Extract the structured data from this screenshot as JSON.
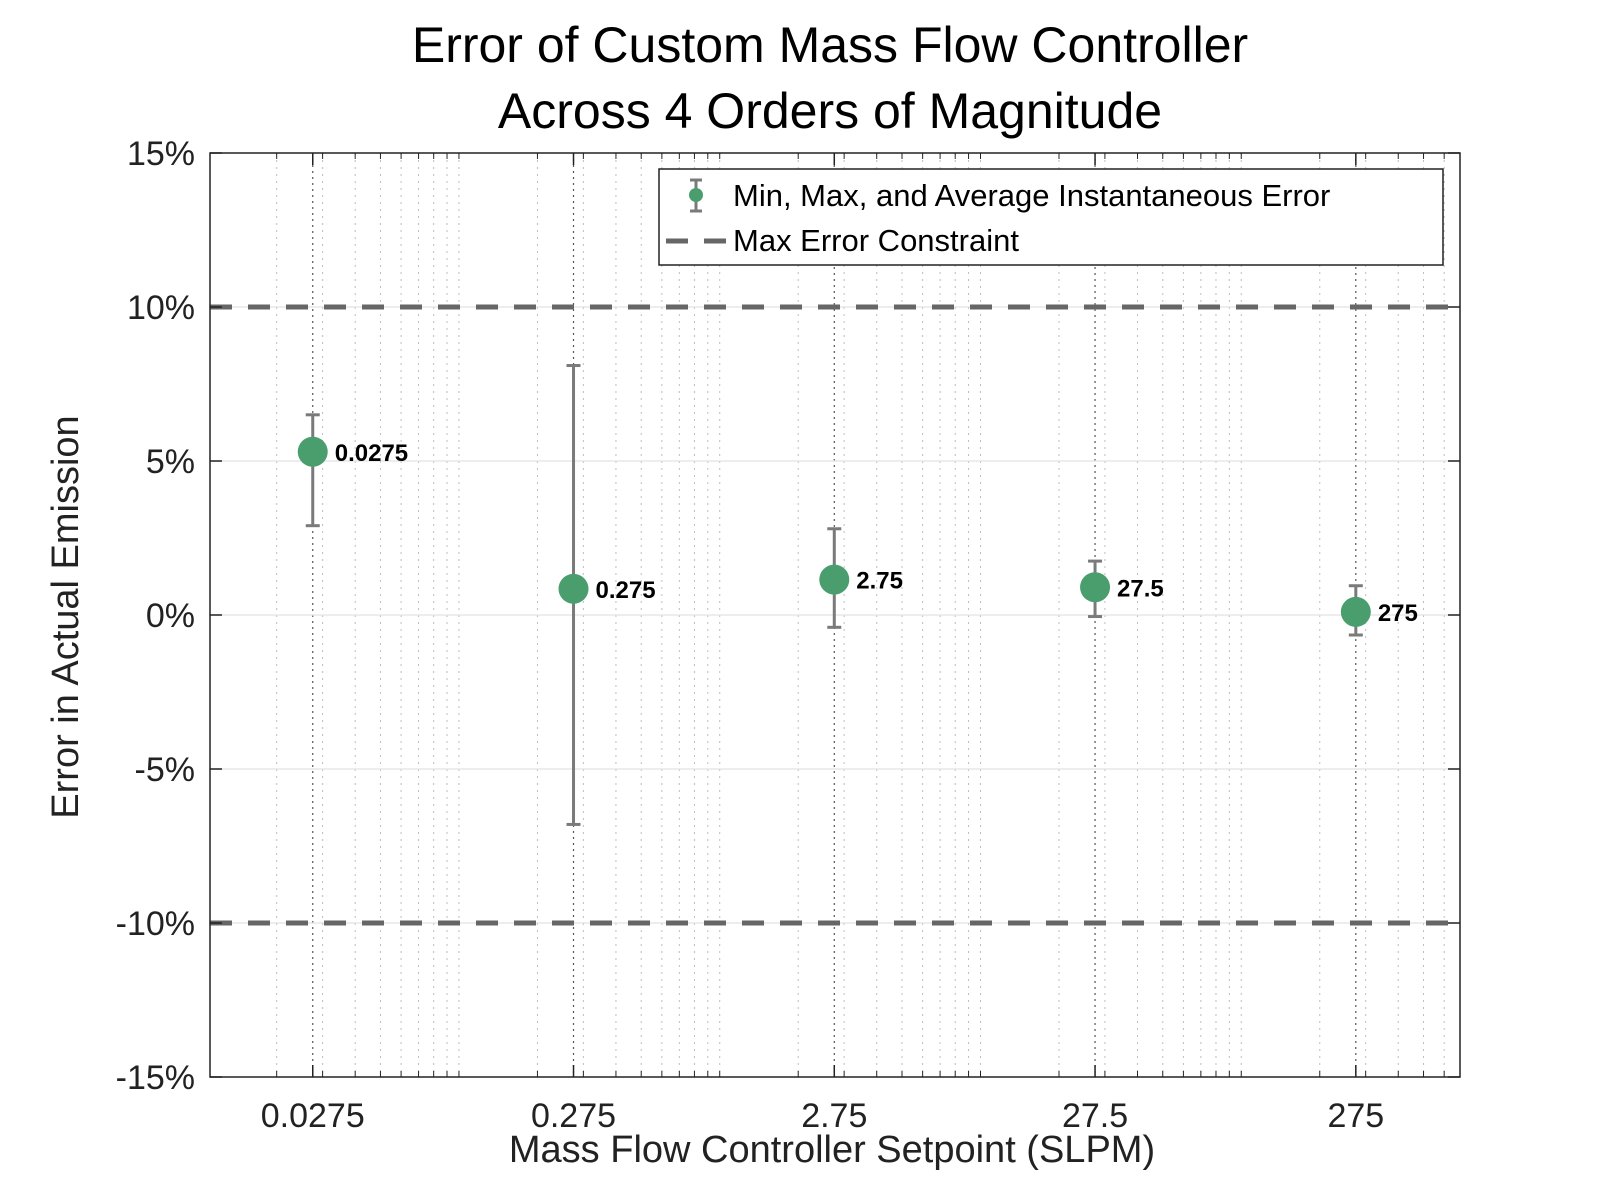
{
  "chart_data": {
    "type": "scatter",
    "title": [
      "Error of Custom Mass Flow Controller",
      "Across 4 Orders of Magnitude"
    ],
    "xlabel": "Mass Flow Controller Setpoint (SLPM)",
    "ylabel": "Error in Actual Emission",
    "x_scale": "log",
    "xlim": [
      0.0111,
      690
    ],
    "ylim": [
      -15,
      15
    ],
    "x_ticks": [
      {
        "value": 0.0275,
        "label": "0.0275"
      },
      {
        "value": 0.275,
        "label": "0.275"
      },
      {
        "value": 2.75,
        "label": "2.75"
      },
      {
        "value": 27.5,
        "label": "27.5"
      },
      {
        "value": 275,
        "label": "275"
      }
    ],
    "y_ticks": [
      {
        "value": 15,
        "label": "15%"
      },
      {
        "value": 10,
        "label": "10%"
      },
      {
        "value": 5,
        "label": "5%"
      },
      {
        "value": 0,
        "label": "0%"
      },
      {
        "value": -5,
        "label": "-5%"
      },
      {
        "value": -10,
        "label": "-10%"
      },
      {
        "value": -15,
        "label": "-15%"
      }
    ],
    "grid": true,
    "series": [
      {
        "name": "Min, Max, and Average Instantaneous Error",
        "color": "#4a9e6e",
        "errorbar_color": "#7a7a7a",
        "points": [
          {
            "x": 0.0275,
            "y": 5.3,
            "min": 2.9,
            "max": 6.5,
            "label": "0.0275"
          },
          {
            "x": 0.275,
            "y": 0.85,
            "min": -6.8,
            "max": 8.1,
            "label": "0.275"
          },
          {
            "x": 2.75,
            "y": 1.15,
            "min": -0.4,
            "max": 2.8,
            "label": "2.75"
          },
          {
            "x": 27.5,
            "y": 0.9,
            "min": -0.05,
            "max": 1.75,
            "label": "27.5"
          },
          {
            "x": 275,
            "y": 0.1,
            "min": -0.65,
            "max": 0.95,
            "label": "275"
          }
        ]
      },
      {
        "name": "Max Error Constraint",
        "color": "#666666",
        "style": "dashed",
        "y_values": [
          10,
          -10
        ]
      }
    ],
    "legend_position": "top-right"
  }
}
